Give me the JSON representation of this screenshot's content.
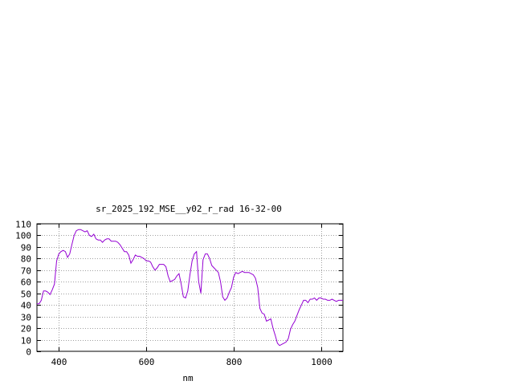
{
  "chart_data": {
    "type": "line",
    "title": "sr_2025_192_MSE__y02_r_rad 16-32-00",
    "xlabel": "nm",
    "ylabel": "",
    "xlim": [
      350,
      1050
    ],
    "ylim": [
      0,
      110
    ],
    "x_ticks": [
      400,
      600,
      800,
      1000
    ],
    "y_ticks": [
      0,
      10,
      20,
      30,
      40,
      50,
      60,
      70,
      80,
      90,
      100,
      110
    ],
    "grid": true,
    "series_color": "#9400d3",
    "series": [
      {
        "x": [
          350,
          355,
          360,
          365,
          370,
          375,
          380,
          385,
          390,
          395,
          400,
          405,
          410,
          415,
          420,
          425,
          430,
          435,
          440,
          445,
          450,
          455,
          460,
          465,
          470,
          475,
          480,
          485,
          490,
          495,
          500,
          505,
          510,
          515,
          520,
          525,
          530,
          535,
          540,
          545,
          550,
          555,
          560,
          565,
          570,
          575,
          580,
          585,
          590,
          595,
          600,
          605,
          610,
          615,
          620,
          625,
          630,
          635,
          640,
          645,
          650,
          655,
          660,
          665,
          670,
          675,
          680,
          685,
          690,
          695,
          700,
          705,
          710,
          715,
          720,
          725,
          730,
          735,
          740,
          745,
          750,
          755,
          760,
          765,
          770,
          775,
          780,
          785,
          790,
          795,
          800,
          805,
          810,
          815,
          820,
          825,
          830,
          835,
          840,
          845,
          850,
          855,
          860,
          865,
          870,
          875,
          880,
          885,
          890,
          895,
          900,
          905,
          910,
          915,
          920,
          925,
          930,
          935,
          940,
          945,
          950,
          955,
          960,
          965,
          970,
          975,
          980,
          985,
          990,
          995,
          1000,
          1005,
          1010,
          1015,
          1020,
          1025,
          1030,
          1035,
          1040,
          1045,
          1050
        ],
        "y": [
          41,
          41,
          44,
          52,
          52,
          51,
          49,
          53,
          58,
          78,
          84,
          86,
          87,
          86,
          81,
          84,
          92,
          100,
          104,
          105,
          105,
          104,
          103,
          104,
          100,
          99,
          101,
          97,
          96,
          96,
          94,
          96,
          97,
          97,
          95,
          95,
          95,
          94,
          92,
          89,
          86,
          86,
          83,
          76,
          79,
          83,
          82,
          82,
          81,
          80,
          78,
          78,
          77,
          73,
          70,
          72,
          75,
          75,
          75,
          73,
          65,
          60,
          61,
          62,
          65,
          67,
          58,
          47,
          46,
          52,
          66,
          78,
          84,
          86,
          60,
          50,
          79,
          84,
          84,
          80,
          74,
          72,
          70,
          68,
          60,
          47,
          44,
          46,
          51,
          55,
          64,
          68,
          67,
          68,
          69,
          68,
          68,
          68,
          67,
          66,
          63,
          55,
          37,
          33,
          32,
          26,
          27,
          28,
          20,
          14,
          7,
          5,
          6,
          7,
          8,
          11,
          19,
          23,
          26,
          31,
          36,
          40,
          44,
          44,
          42,
          45,
          45,
          46,
          44,
          46,
          46,
          45,
          45,
          44,
          44,
          45,
          44,
          43,
          44,
          44,
          44
        ]
      }
    ]
  }
}
